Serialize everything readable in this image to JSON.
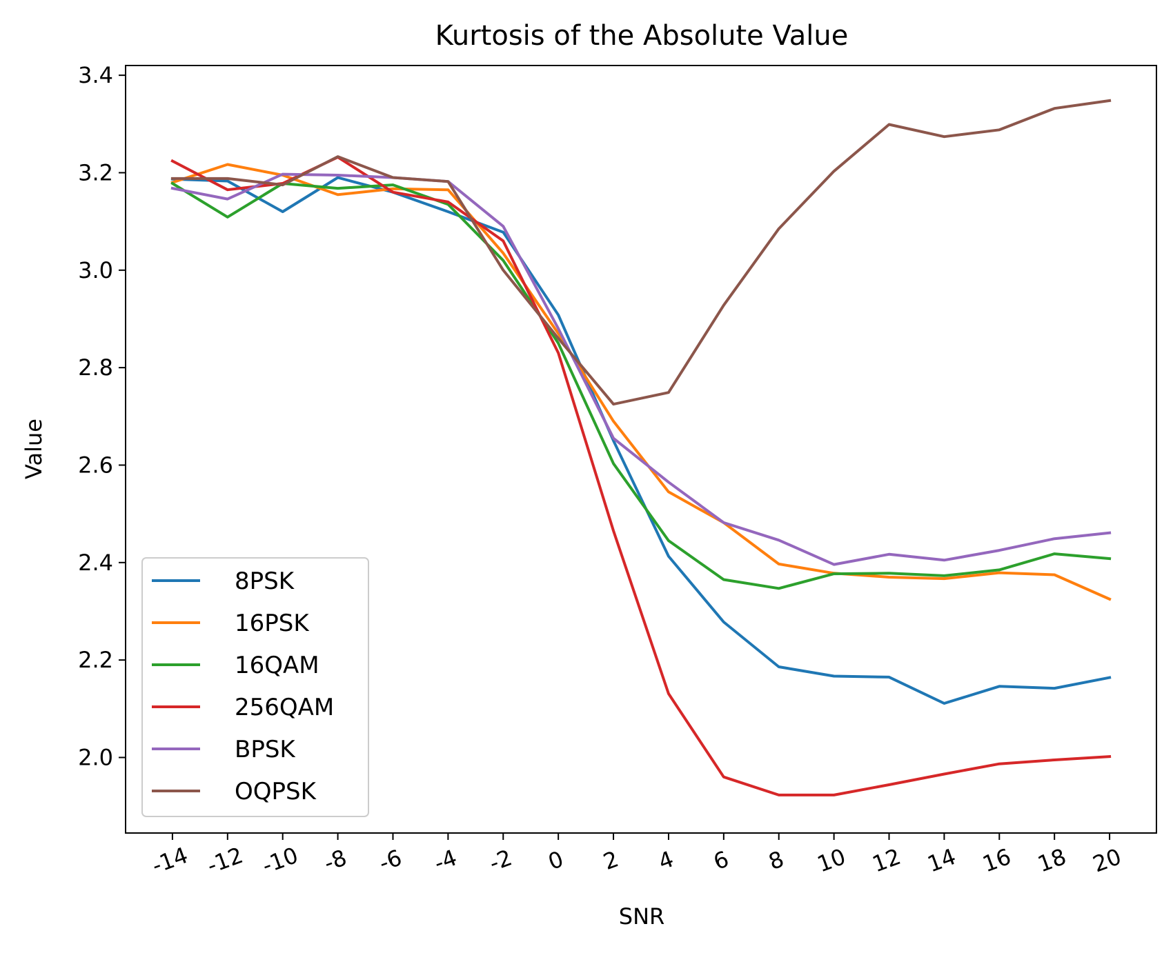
{
  "chart_data": {
    "type": "line",
    "title": "Kurtosis of the Absolute Value",
    "xlabel": "SNR",
    "ylabel": "Value",
    "x": [
      -14,
      -12,
      -10,
      -8,
      -6,
      -4,
      -2,
      0,
      2,
      4,
      6,
      8,
      10,
      12,
      14,
      16,
      18,
      20
    ],
    "x_tick_labels": [
      "-14",
      "-12",
      "-10",
      "-8",
      "-6",
      "-4",
      "-2",
      "0",
      "2",
      "4",
      "6",
      "8",
      "10",
      "12",
      "14",
      "16",
      "18",
      "20"
    ],
    "y_tick_labels": [
      "2.0",
      "2.2",
      "2.4",
      "2.6",
      "2.8",
      "3.0",
      "3.2",
      "3.4"
    ],
    "y_ticks": [
      2.0,
      2.2,
      2.4,
      2.6,
      2.8,
      3.0,
      3.2,
      3.4
    ],
    "ylim": [
      1.845,
      3.42
    ],
    "xlim": [
      -15.7,
      21.7
    ],
    "grid": false,
    "legend_position": "lower-left",
    "series": [
      {
        "name": "8PSK",
        "color": "#1f77b4",
        "values": [
          3.187,
          3.183,
          3.12,
          3.19,
          3.16,
          3.12,
          3.078,
          2.908,
          2.65,
          2.413,
          2.278,
          2.186,
          2.167,
          2.165,
          2.111,
          2.146,
          2.142,
          2.164
        ]
      },
      {
        "name": "16PSK",
        "color": "#ff7f0e",
        "values": [
          3.18,
          3.217,
          3.195,
          3.155,
          3.167,
          3.165,
          3.035,
          2.87,
          2.69,
          2.545,
          2.482,
          2.397,
          2.378,
          2.37,
          2.367,
          2.379,
          2.375,
          2.325
        ]
      },
      {
        "name": "16QAM",
        "color": "#2ca02c",
        "values": [
          3.178,
          3.109,
          3.178,
          3.168,
          3.175,
          3.135,
          3.02,
          2.85,
          2.603,
          2.445,
          2.365,
          2.347,
          2.377,
          2.378,
          2.373,
          2.385,
          2.418,
          2.408
        ]
      },
      {
        "name": "256QAM",
        "color": "#d62728",
        "values": [
          3.224,
          3.165,
          3.178,
          3.232,
          3.16,
          3.14,
          3.06,
          2.83,
          2.465,
          2.131,
          1.96,
          1.923,
          1.923,
          1.944,
          1.966,
          1.987,
          1.995,
          2.002
        ]
      },
      {
        "name": "BPSK",
        "color": "#9467bd",
        "values": [
          3.168,
          3.146,
          3.197,
          3.195,
          3.19,
          3.182,
          3.09,
          2.88,
          2.655,
          2.565,
          2.482,
          2.446,
          2.396,
          2.417,
          2.405,
          2.425,
          2.449,
          2.461
        ]
      },
      {
        "name": "OQPSK",
        "color": "#8c564b",
        "values": [
          3.188,
          3.188,
          3.175,
          3.233,
          3.19,
          3.182,
          3.0,
          2.86,
          2.725,
          2.749,
          2.928,
          3.085,
          3.203,
          3.299,
          3.274,
          3.288,
          3.332,
          3.348
        ]
      }
    ]
  }
}
